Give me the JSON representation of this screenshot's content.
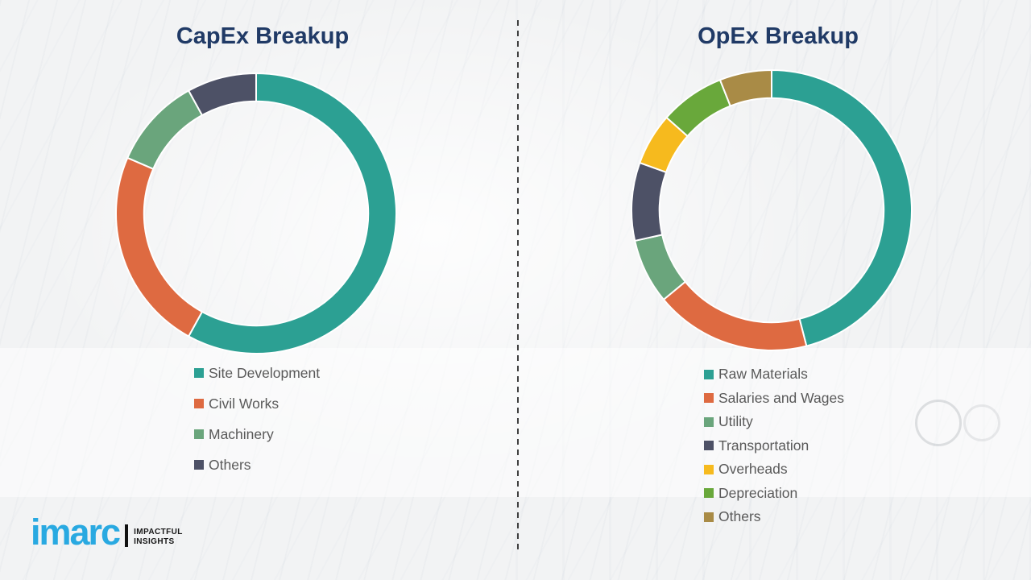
{
  "title_color": "#203A66",
  "legend_text_color": "#595959",
  "divider_style": "vertical-dashed",
  "chart_data": [
    {
      "type": "pie",
      "subtype": "donut",
      "title": "CapEx Breakup",
      "labels": [
        "Site Development",
        "Civil Works",
        "Machinery",
        "Others"
      ],
      "values": [
        58,
        23.5,
        10.5,
        8
      ],
      "colors": [
        "#2CA093",
        "#DE6A41",
        "#6AA57C",
        "#4D5166"
      ],
      "unit": "percent",
      "start_angle_deg": 0,
      "direction": "clockwise",
      "inner_radius_ratio": 0.8,
      "legend_position": "below-left",
      "separator_color": "#FFFFFF"
    },
    {
      "type": "pie",
      "subtype": "donut",
      "title": "OpEx Breakup",
      "labels": [
        "Raw Materials",
        "Salaries and Wages",
        "Utility",
        "Transportation",
        "Overheads",
        "Depreciation",
        "Others"
      ],
      "values": [
        46,
        18,
        7.5,
        9,
        6,
        7.5,
        6
      ],
      "colors": [
        "#2CA093",
        "#DE6A41",
        "#6AA57C",
        "#4D5166",
        "#F6BA1E",
        "#69A83B",
        "#A98B46"
      ],
      "unit": "percent",
      "start_angle_deg": 0,
      "direction": "clockwise",
      "inner_radius_ratio": 0.8,
      "legend_position": "below-left",
      "separator_color": "#FFFFFF"
    }
  ],
  "logo": {
    "brand": "imarc",
    "brand_color": "#29A9E1",
    "tagline_lines": [
      "IMPACTFUL",
      "INSIGHTS"
    ]
  }
}
